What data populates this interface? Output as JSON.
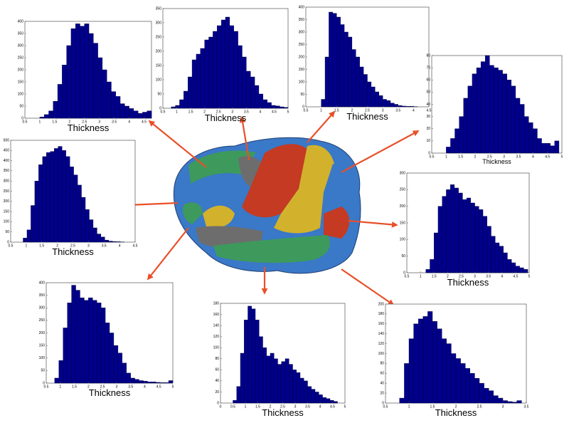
{
  "chart_data": [
    {
      "type": "histogram",
      "xlabel": "Thickness",
      "color": "#00008b",
      "bins": [
        1,
        1.15,
        1.3,
        1.45,
        1.6,
        1.75,
        1.9,
        2.05,
        2.2,
        2.35,
        2.5,
        2.65,
        2.8,
        2.95,
        3.1,
        3.25,
        3.4,
        3.55,
        3.7,
        3.85,
        4,
        4.15,
        4.3,
        4.45,
        4.6,
        4.75
      ],
      "values": [
        5,
        15,
        30,
        70,
        140,
        220,
        300,
        370,
        390,
        380,
        390,
        350,
        310,
        250,
        200,
        150,
        110,
        90,
        60,
        50,
        40,
        30,
        20,
        25,
        30
      ],
      "xlim": [
        0.5,
        4.75
      ],
      "xticks": [
        0.5,
        1,
        1.5,
        2,
        2.5,
        3,
        3.5,
        4,
        4.5
      ],
      "ylim": [
        0,
        400
      ],
      "yticks": [
        0,
        50,
        100,
        150,
        200,
        250,
        300,
        350,
        400
      ]
    },
    {
      "type": "histogram",
      "xlabel": "Thickness",
      "color": "#00008b",
      "bins": [
        0.8,
        0.95,
        1.1,
        1.25,
        1.4,
        1.55,
        1.7,
        1.85,
        2,
        2.15,
        2.3,
        2.45,
        2.6,
        2.75,
        2.9,
        3.05,
        3.2,
        3.35,
        3.5,
        3.65,
        3.8,
        3.95,
        4.1,
        4.25,
        4.4,
        4.55,
        4.7,
        4.85,
        5
      ],
      "values": [
        5,
        10,
        30,
        60,
        110,
        170,
        190,
        210,
        240,
        250,
        270,
        290,
        310,
        320,
        290,
        270,
        220,
        180,
        130,
        110,
        80,
        50,
        30,
        20,
        10,
        8,
        5,
        3
      ],
      "xlim": [
        0.5,
        5
      ],
      "xticks": [
        0.5,
        1,
        1.5,
        2,
        2.5,
        3,
        3.5,
        4,
        4.5,
        5
      ],
      "ylim": [
        0,
        350
      ],
      "yticks": [
        0,
        50,
        100,
        150,
        200,
        250,
        300,
        350
      ]
    },
    {
      "type": "histogram",
      "xlabel": "Thickness",
      "color": "#00008b",
      "bins": [
        1,
        1.125,
        1.25,
        1.375,
        1.5,
        1.625,
        1.75,
        1.875,
        2,
        2.125,
        2.25,
        2.375,
        2.5,
        2.625,
        2.75,
        2.875,
        3,
        3.125,
        3.25,
        3.375,
        3.5,
        3.625,
        3.75,
        3.875,
        4,
        4.125
      ],
      "values": [
        30,
        200,
        380,
        375,
        360,
        330,
        300,
        280,
        230,
        200,
        160,
        130,
        100,
        80,
        60,
        45,
        30,
        25,
        15,
        10,
        5,
        3,
        2,
        2,
        1
      ],
      "xlim": [
        0.5,
        4.5
      ],
      "xticks": [
        0.5,
        1,
        1.5,
        2,
        2.5,
        3,
        3.5,
        4,
        4.5
      ],
      "ylim": [
        0,
        400
      ],
      "yticks": [
        0,
        50,
        100,
        150,
        200,
        250,
        300,
        350,
        400
      ]
    },
    {
      "type": "histogram",
      "xlabel": "Thickness",
      "color": "#00008b",
      "bins": [
        1,
        1.15,
        1.3,
        1.45,
        1.6,
        1.75,
        1.9,
        2.05,
        2.2,
        2.35,
        2.5,
        2.65,
        2.8,
        2.95,
        3.1,
        3.25,
        3.4,
        3.55,
        3.7,
        3.85,
        4,
        4.15,
        4.3,
        4.45,
        4.6,
        4.75,
        4.9
      ],
      "values": [
        5,
        12,
        20,
        30,
        45,
        55,
        65,
        70,
        75,
        80,
        72,
        70,
        68,
        65,
        60,
        55,
        45,
        40,
        30,
        25,
        20,
        12,
        8,
        8,
        6,
        10
      ],
      "xlim": [
        0.5,
        5
      ],
      "xticks": [
        0.5,
        1,
        1.5,
        2,
        2.5,
        3,
        3.5,
        4,
        4.5,
        5
      ],
      "ylim": [
        0,
        80
      ],
      "yticks": [
        0,
        10,
        20,
        30,
        40,
        50,
        60,
        70,
        80
      ]
    },
    {
      "type": "histogram",
      "xlabel": "Thickness",
      "color": "#00008b",
      "bins": [
        0.9,
        1.025,
        1.15,
        1.275,
        1.4,
        1.525,
        1.65,
        1.775,
        1.9,
        2.025,
        2.15,
        2.275,
        2.4,
        2.525,
        2.65,
        2.775,
        2.9,
        3.025,
        3.15,
        3.275,
        3.4,
        3.525,
        3.65,
        3.775,
        3.9,
        4.025,
        4.15
      ],
      "values": [
        20,
        60,
        180,
        300,
        380,
        420,
        440,
        445,
        460,
        470,
        450,
        420,
        370,
        330,
        280,
        220,
        160,
        110,
        70,
        40,
        25,
        10,
        5,
        3,
        2,
        1
      ],
      "xlim": [
        0.5,
        4.5
      ],
      "xticks": [
        0.5,
        1,
        1.5,
        2,
        2.5,
        3,
        3.5,
        4,
        4.5
      ],
      "ylim": [
        0,
        500
      ],
      "yticks": [
        0,
        50,
        100,
        150,
        200,
        250,
        300,
        350,
        400,
        450,
        500
      ]
    },
    {
      "type": "histogram",
      "xlabel": "Thickness",
      "color": "#00008b",
      "bins": [
        1.2,
        1.35,
        1.5,
        1.65,
        1.8,
        1.95,
        2.1,
        2.25,
        2.4,
        2.55,
        2.7,
        2.85,
        3,
        3.15,
        3.3,
        3.45,
        3.6,
        3.75,
        3.9,
        4.05,
        4.2,
        4.35,
        4.5,
        4.65,
        4.8,
        4.95
      ],
      "values": [
        10,
        40,
        120,
        200,
        230,
        250,
        265,
        255,
        240,
        220,
        225,
        210,
        200,
        190,
        170,
        140,
        110,
        90,
        80,
        60,
        40,
        30,
        20,
        15,
        10
      ],
      "xlim": [
        0.5,
        5
      ],
      "xticks": [
        0.5,
        1,
        1.5,
        2,
        2.5,
        3,
        3.5,
        4,
        4.5,
        5
      ],
      "ylim": [
        0,
        300
      ],
      "yticks": [
        0,
        50,
        100,
        150,
        200,
        250,
        300
      ]
    },
    {
      "type": "histogram",
      "xlabel": "Thickness",
      "color": "#00008b",
      "bins": [
        0.8,
        0.95,
        1.1,
        1.25,
        1.4,
        1.55,
        1.7,
        1.85,
        2,
        2.15,
        2.3,
        2.45,
        2.6,
        2.75,
        2.9,
        3.05,
        3.2,
        3.35,
        3.5,
        3.65,
        3.8,
        3.95,
        4.1,
        4.25,
        4.4,
        4.55,
        4.7,
        4.85,
        5
      ],
      "values": [
        20,
        90,
        220,
        320,
        390,
        370,
        340,
        330,
        340,
        330,
        320,
        300,
        240,
        200,
        150,
        120,
        80,
        40,
        20,
        15,
        10,
        8,
        5,
        5,
        3,
        2,
        2,
        10
      ],
      "xlim": [
        0.5,
        5
      ],
      "xticks": [
        0.5,
        1,
        1.5,
        2,
        2.5,
        3,
        3.5,
        4,
        4.5,
        5
      ],
      "ylim": [
        0,
        400
      ],
      "yticks": [
        0,
        50,
        100,
        150,
        200,
        250,
        300,
        350,
        400
      ]
    },
    {
      "type": "histogram",
      "xlabel": "Thickness",
      "color": "#00008b",
      "bins": [
        0.5,
        0.65,
        0.8,
        0.95,
        1.1,
        1.25,
        1.4,
        1.55,
        1.7,
        1.85,
        2,
        2.15,
        2.3,
        2.45,
        2.6,
        2.75,
        2.9,
        3.05,
        3.2,
        3.35,
        3.5,
        3.65,
        3.8,
        3.95,
        4.1,
        4.25,
        4.4,
        4.55,
        4.7
      ],
      "values": [
        5,
        30,
        90,
        150,
        175,
        170,
        150,
        120,
        100,
        85,
        90,
        80,
        70,
        75,
        80,
        70,
        60,
        55,
        45,
        40,
        30,
        25,
        20,
        15,
        10,
        8,
        5,
        3
      ],
      "xlim": [
        0,
        5
      ],
      "xticks": [
        0,
        0.5,
        1,
        1.5,
        2,
        2.5,
        3,
        3.5,
        4,
        4.5,
        5
      ],
      "ylim": [
        0,
        180
      ],
      "yticks": [
        0,
        20,
        40,
        60,
        80,
        100,
        120,
        140,
        160,
        180
      ]
    },
    {
      "type": "histogram",
      "xlabel": "Thickness",
      "color": "#00008b",
      "bins": [
        0.8,
        0.9,
        1,
        1.1,
        1.2,
        1.3,
        1.4,
        1.5,
        1.6,
        1.7,
        1.8,
        1.9,
        2,
        2.1,
        2.2,
        2.3,
        2.4,
        2.5,
        2.6,
        2.7,
        2.8,
        2.9,
        3,
        3.1,
        3.2,
        3.3,
        3.4
      ],
      "values": [
        10,
        80,
        130,
        160,
        170,
        175,
        185,
        165,
        150,
        130,
        120,
        100,
        90,
        80,
        70,
        60,
        50,
        40,
        30,
        25,
        15,
        10,
        5,
        3,
        2,
        5
      ],
      "xlim": [
        0.5,
        3.5
      ],
      "xticks": [
        0.5,
        1,
        1.5,
        2,
        2.5,
        3,
        3.5
      ],
      "ylim": [
        0,
        200
      ],
      "yticks": [
        0,
        20,
        40,
        60,
        80,
        100,
        120,
        140,
        160,
        180,
        200
      ]
    }
  ]
}
